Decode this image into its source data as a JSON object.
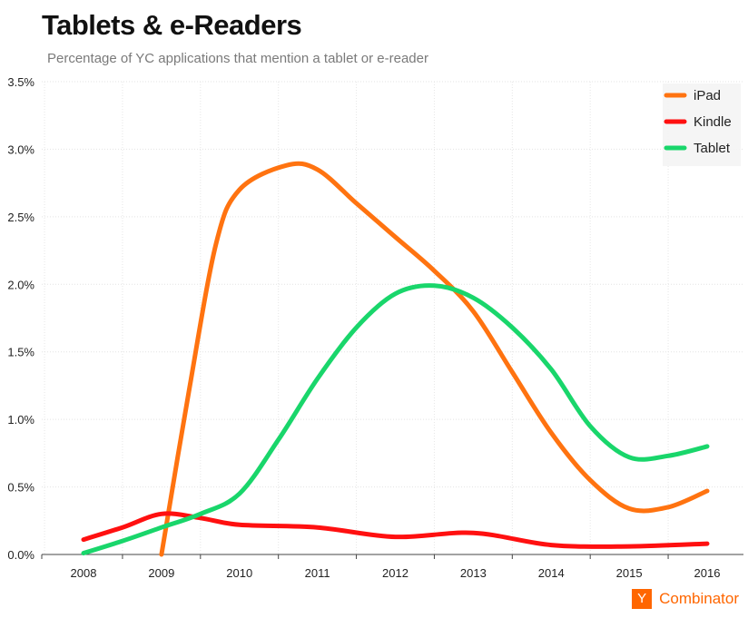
{
  "chart_data": {
    "type": "line",
    "title": "Tablets & e-Readers",
    "subtitle": "Percentage of YC applications that mention a tablet or e-reader",
    "x": [
      "2008",
      "2009",
      "2010",
      "2011",
      "2012",
      "2013",
      "2014",
      "2015",
      "2016"
    ],
    "ylim": [
      0,
      3.5
    ],
    "yticks": [
      "0.0%",
      "0.5%",
      "1.0%",
      "1.5%",
      "2.0%",
      "2.5%",
      "3.0%",
      "3.5%"
    ],
    "grid": true,
    "legend_position": "top-right",
    "series": [
      {
        "name": "iPad",
        "color": "#ff7310",
        "points": [
          [
            2009,
            0.0
          ],
          [
            2009.35,
            1.2
          ],
          [
            2009.7,
            2.3
          ],
          [
            2010,
            2.7
          ],
          [
            2010.6,
            2.88
          ],
          [
            2011,
            2.85
          ],
          [
            2011.5,
            2.6
          ],
          [
            2012,
            2.35
          ],
          [
            2012.5,
            2.1
          ],
          [
            2013,
            1.8
          ],
          [
            2013.5,
            1.35
          ],
          [
            2014,
            0.9
          ],
          [
            2014.5,
            0.55
          ],
          [
            2015,
            0.34
          ],
          [
            2015.5,
            0.35
          ],
          [
            2016,
            0.47
          ]
        ]
      },
      {
        "name": "Kindle",
        "color": "#ff1010",
        "points": [
          [
            2008,
            0.11
          ],
          [
            2008.5,
            0.2
          ],
          [
            2009,
            0.3
          ],
          [
            2009.5,
            0.27
          ],
          [
            2010,
            0.22
          ],
          [
            2011,
            0.2
          ],
          [
            2012,
            0.13
          ],
          [
            2013,
            0.16
          ],
          [
            2014,
            0.07
          ],
          [
            2015,
            0.06
          ],
          [
            2016,
            0.08
          ]
        ]
      },
      {
        "name": "Tablet",
        "color": "#19d66b",
        "points": [
          [
            2008,
            0.01
          ],
          [
            2008.5,
            0.1
          ],
          [
            2009,
            0.2
          ],
          [
            2009.5,
            0.3
          ],
          [
            2010,
            0.45
          ],
          [
            2010.5,
            0.85
          ],
          [
            2011,
            1.3
          ],
          [
            2011.5,
            1.68
          ],
          [
            2012,
            1.93
          ],
          [
            2012.5,
            1.99
          ],
          [
            2013,
            1.9
          ],
          [
            2013.5,
            1.68
          ],
          [
            2014,
            1.37
          ],
          [
            2014.5,
            0.95
          ],
          [
            2015,
            0.72
          ],
          [
            2015.5,
            0.73
          ],
          [
            2016,
            0.8
          ]
        ]
      }
    ]
  },
  "brand": {
    "logo_letter": "Y",
    "word": "Combinator"
  }
}
